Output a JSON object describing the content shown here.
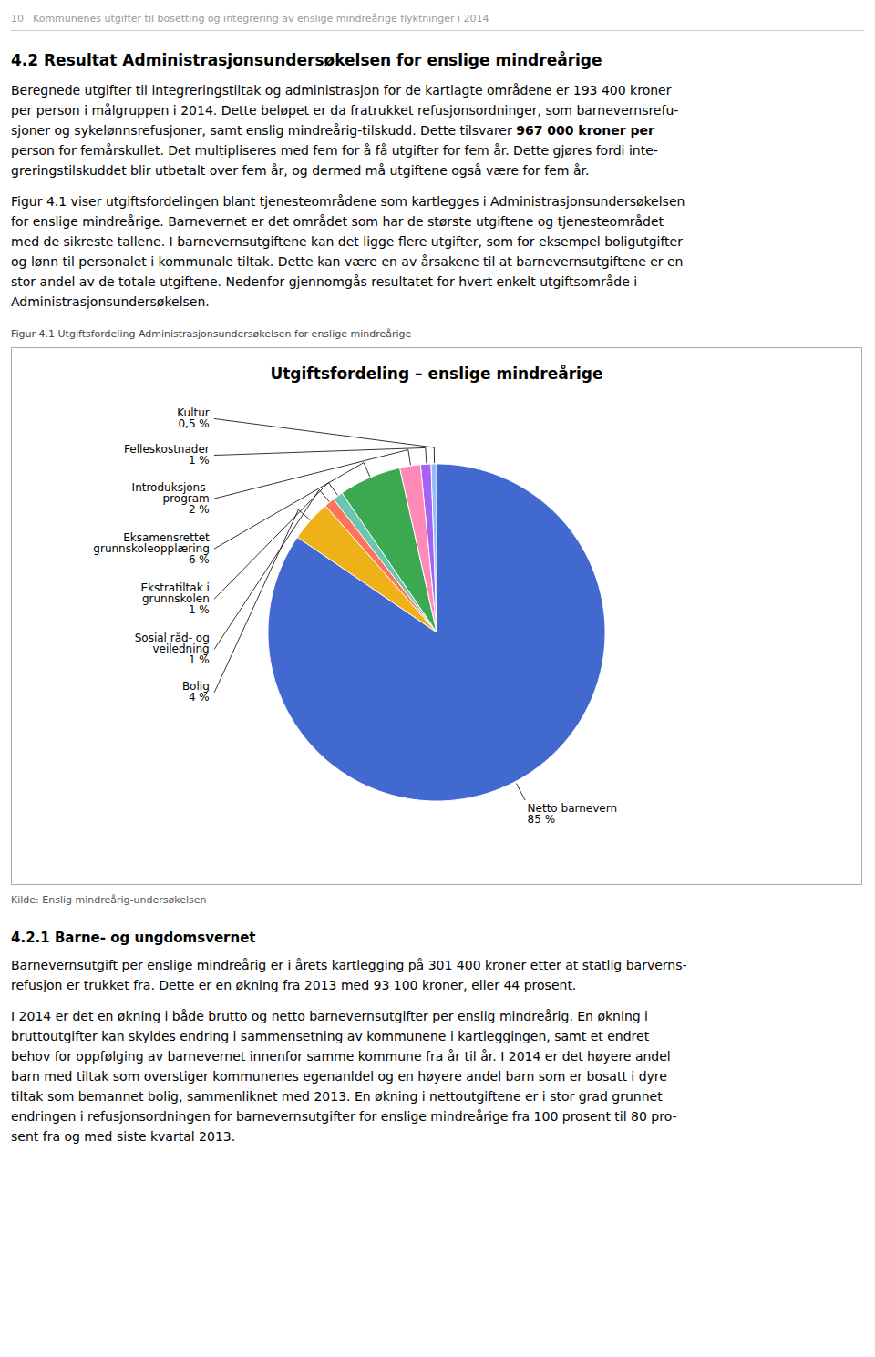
{
  "page": {
    "header_number": "10",
    "header_text": "Kommunenes utgifter til bosetting og integrering av enslige mindreårige flyktninger i 2014",
    "section_title": "4.2 Resultat Administrasjonsundersøkelsen for enslige mindreårige",
    "section_body1_lines": [
      "Beregnede utgifter til integreringstiltak og administrasjon for de kartlagte områdene er 193 400 kroner",
      "per person i målgruppen i 2014. Dette beløpet er da fratrukket refusjonsordninger, som barnevernsrefu-",
      {
        "text": "sjoner og sykelønnsrefusjoner, samt enslig mindreårig-tilskudd. Dette tilsvarer ",
        "bold": "967 000 kroner per"
      },
      "person for femårskullet. Det multipliseres med fem for å få utgifter for fem år. Dette gjøres fordi inte-",
      "greringstilskuddet blir utbetalt over fem år, og dermed må utgiftene også være for fem år."
    ],
    "section_body2_lines": [
      "Figur 4.1 viser utgiftsfordelingen blant tjenesteområdene som kartlegges i Administrasjonsundersøkelsen",
      "for enslige mindreårige. Barnevernet er det området som har de største utgiftene og tjenesteområdet",
      "med de sikreste tallene. I barnevernsutgiftene kan det ligge flere utgifter, som for eksempel boligutgifter",
      "og lønn til personalet i kommunale tiltak. Dette kan være en av årsakene til at barnevernsutgiftene er en",
      "stor andel av de totale utgiftene. Nedenfor gjennomgås resultatet for hvert enkelt utgiftsområde i",
      "Administrasjonsundersøkelsen."
    ],
    "figure_label": "Figur 4.1 Utgiftsfordeling Administrasjonsundersøkelsen for enslige mindreårige",
    "source_text": "Kilde: Enslig mindreårig-undersøkelsen",
    "subsection_title": "4.2.1 Barne- og ungdomsvernet",
    "subsection_body1_lines": [
      "Barnevernsutgift per enslige mindreårig er i årets kartlegging på 301 400 kroner etter at statlig barverns-",
      "refusjon er trukket fra. Dette er en økning fra 2013 med 93 100 kroner, eller 44 prosent."
    ],
    "subsection_body2_lines": [
      "I 2014 er det en økning i både brutto og netto barnevernsutgifter per enslig mindreårig. En økning i",
      "bruttoutgifter kan skyldes endring i sammensetning av kommunene i kartleggingen, samt et endret",
      "behov for oppfølging av barnevernet innenfor samme kommune fra år til år. I 2014 er det høyere andel",
      "barn med tiltak som overstiger kommunenes egenanldel og en høyere andel barn som er bosatt i dyre",
      "tiltak som bemannet bolig, sammenliknet med 2013. En økning i nettoutgiftene er i stor grad grunnet",
      "endringen i refusjonsordningen for barnevernsutgifter for enslige mindreårige fra 100 prosent til 80 pro-",
      "sent fra og med siste kvartal 2013."
    ]
  },
  "chart_data": {
    "type": "pie",
    "title": "Utgiftsfordeling – enslige mindreårige",
    "categories": [
      "Netto barnevern",
      "Bolig",
      "Sosial råd- og\nveiledning",
      "Ekstratiltak i\ngrunnskolen",
      "Eksamensrettet\ngrunnskoleopplæring",
      "Introduksjons-\nprogram",
      "Felleskostnader",
      "Kultur"
    ],
    "values": [
      85,
      4,
      1,
      1,
      6,
      2,
      1,
      0.5
    ],
    "value_labels": [
      "85 %",
      "4 %",
      "1 %",
      "1 %",
      "6 %",
      "2 %",
      "1 %",
      "0,5 %"
    ],
    "data_labels": true
  }
}
